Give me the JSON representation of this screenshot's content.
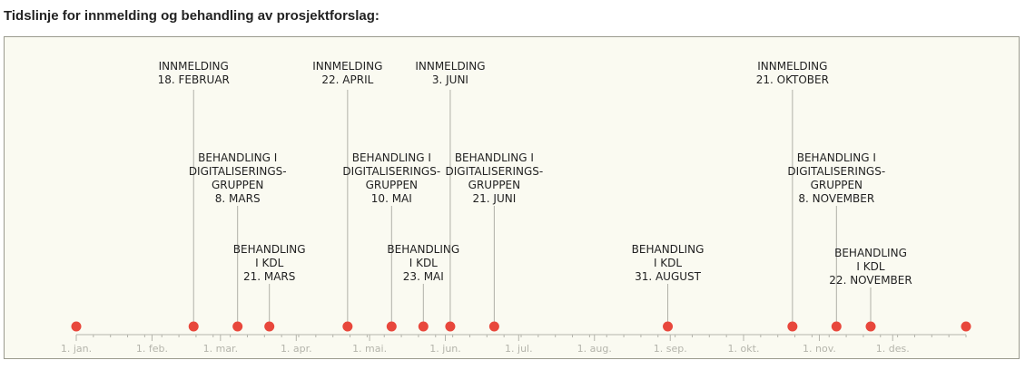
{
  "title": "Tidslinje for innmelding og behandling av prosjektforslag:",
  "axis": {
    "start": "01-01",
    "end": "12-31",
    "months": [
      {
        "date": "01-01",
        "label": "1. jan."
      },
      {
        "date": "02-01",
        "label": "1. feb."
      },
      {
        "date": "03-01",
        "label": "1. mar."
      },
      {
        "date": "04-01",
        "label": "1. apr."
      },
      {
        "date": "05-01",
        "label": "1. mai."
      },
      {
        "date": "06-01",
        "label": "1. jun."
      },
      {
        "date": "07-01",
        "label": "1. jul."
      },
      {
        "date": "08-01",
        "label": "1. aug."
      },
      {
        "date": "09-01",
        "label": "1. sep."
      },
      {
        "date": "10-01",
        "label": "1. okt."
      },
      {
        "date": "11-01",
        "label": "1. nov."
      },
      {
        "date": "12-01",
        "label": "1. des."
      }
    ]
  },
  "colors": {
    "dot": "#e8473c",
    "line": "#b0b0a8",
    "axis": "#b4b4ab"
  },
  "endpoints": [
    "01-01",
    "12-31"
  ],
  "events": [
    {
      "date": "02-18",
      "tier": "top",
      "lines": [
        "INNMELDING",
        "18. FEBRUAR"
      ]
    },
    {
      "date": "03-08",
      "tier": "middle",
      "lines": [
        "BEHANDLING I",
        "DIGITALISERINGS-",
        "GRUPPEN",
        "8. MARS"
      ]
    },
    {
      "date": "03-21",
      "tier": "bottom",
      "lines": [
        "BEHANDLING",
        "I KDL",
        "21. MARS"
      ]
    },
    {
      "date": "04-22",
      "tier": "top",
      "lines": [
        "INNMELDING",
        "22. APRIL"
      ]
    },
    {
      "date": "05-10",
      "tier": "middle",
      "lines": [
        "BEHANDLING I",
        "DIGITALISERINGS-",
        "GRUPPEN",
        "10. MAI"
      ]
    },
    {
      "date": "05-23",
      "tier": "bottom",
      "lines": [
        "BEHANDLING",
        "I KDL",
        "23. MAI"
      ]
    },
    {
      "date": "06-03",
      "tier": "top",
      "lines": [
        "INNMELDING",
        "3. JUNI"
      ]
    },
    {
      "date": "06-21",
      "tier": "middle",
      "lines": [
        "BEHANDLING I",
        "DIGITALISERINGS-",
        "GRUPPEN",
        "21. JUNI"
      ]
    },
    {
      "date": "08-31",
      "tier": "bottom",
      "lines": [
        "BEHANDLING",
        "I KDL",
        "31. AUGUST"
      ]
    },
    {
      "date": "10-21",
      "tier": "top",
      "lines": [
        "INNMELDING",
        "21. OKTOBER"
      ]
    },
    {
      "date": "11-08",
      "tier": "middle",
      "lines": [
        "BEHANDLING I",
        "DIGITALISERINGS-",
        "GRUPPEN",
        "8. NOVEMBER"
      ]
    },
    {
      "date": "11-22",
      "tier": "bottom2",
      "lines": [
        "BEHANDLING",
        "I KDL",
        "22. NOVEMBER"
      ]
    }
  ]
}
